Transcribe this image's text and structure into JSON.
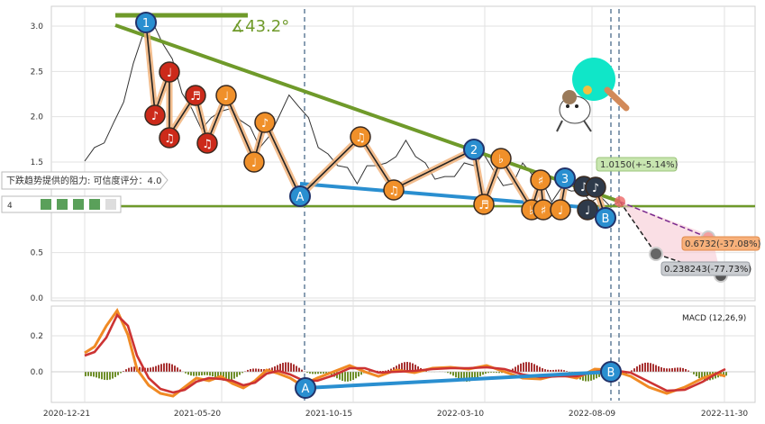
{
  "chart_data": [
    {
      "type": "line",
      "panel": "price",
      "ylim": [
        0,
        3.2
      ],
      "yticks": [
        "0.0",
        "0.5",
        "1.0",
        "1.5",
        "2.0",
        "2.5",
        "3.0"
      ],
      "xticks": [
        "2020-12-21",
        "2021-05-20",
        "2021-10-15",
        "2022-03-10",
        "2022-08-09",
        "2022-11-30"
      ],
      "grid": true,
      "series": [
        {
          "values": [
            1.55,
            1.62,
            1.75,
            1.9,
            2.2,
            2.55,
            2.95,
            3.0,
            2.85,
            2.6,
            2.3,
            2.05,
            1.9,
            1.95,
            2.1,
            2.05,
            2.0,
            1.85,
            1.7,
            1.75,
            2.05,
            2.2,
            2.15,
            1.95,
            1.7,
            1.55,
            1.5,
            1.4,
            1.3,
            1.42,
            1.5,
            1.45,
            1.6,
            1.7,
            1.6,
            1.45,
            1.35,
            1.3,
            1.38,
            1.45,
            1.5,
            1.55,
            1.45,
            1.2,
            1.3,
            1.45,
            1.4,
            1.25,
            1.1,
            1.18,
            1.22,
            1.15,
            1.1,
            1.08,
            1.05,
            1.02
          ]
        }
      ],
      "trendlines": [
        {
          "label": "∡43.2°",
          "color": "#6f8f2a"
        }
      ],
      "support_level": 1.0,
      "wave_labels": [
        "1",
        "2",
        "3",
        "A",
        "B"
      ],
      "annotations": [
        {
          "text": "下跌趋势提供的阻力: 可信度评分：4.0"
        },
        {
          "text": "4"
        },
        {
          "text": "1.0150(+-5.14%)",
          "y": 1.015
        },
        {
          "text": "0.6732(-37.08%)",
          "y": 0.6732
        },
        {
          "text": "0.238243(-77.73%)",
          "y": 0.238243
        }
      ],
      "note_glyphs": [
        "♪",
        "♩",
        "♫",
        "♬",
        "♭",
        "♯"
      ]
    },
    {
      "type": "line",
      "panel": "macd",
      "title": "MACD (12,26,9)",
      "ylim": [
        -0.18,
        0.36
      ],
      "yticks": [
        "0.0",
        "0.2"
      ],
      "grid": true
    }
  ]
}
